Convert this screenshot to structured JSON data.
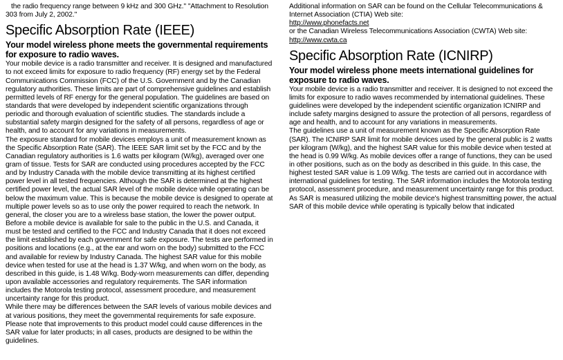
{
  "frag1": "the radio frequency range between 9 kHz and 300 GHz.\" \"Attachment to Resolution 303 from July 2, 2002.\"",
  "h1a": "Specific Absorption Rate (IEEE)",
  "h2a": "Your model wireless phone meets the governmental requirements for exposure to radio waves.",
  "p1": "Your mobile device is a radio transmitter and receiver. It is designed and manufactured to not exceed limits for exposure to radio frequency (RF) energy set by the Federal Communications Commission (FCC) of the U.S. Government and by the Canadian regulatory authorities. These limits are part of comprehensive guidelines and establish permitted levels of RF energy for the general population. The guidelines are based on standards that were developed by independent scientific organizations through periodic and thorough evaluation of scientific studies. The standards include a substantial safety margin designed for the safety of all persons, regardless of age or health, and to account for any variations in measurements.",
  "p2": "The exposure standard for mobile devices employs a unit of measurement known as the Specific Absorption Rate (SAR). The IEEE SAR limit set by the FCC and by the Canadian regulatory authorities is 1.6 watts per kilogram (W/kg), averaged over one gram of tissue. Tests for SAR are conducted using procedures accepted by the FCC and by Industry Canada with the mobile device transmitting at its highest certified power level in all tested frequencies. Although the SAR is determined at the highest certified power level, the actual SAR level of the mobile device while operating can be below the maximum value. This is because the mobile device is designed to operate at multiple power levels so as to use only the power required to reach the network. In general, the closer you are to a wireless base station, the lower the power output.",
  "p3": "Before a mobile device is available for sale to the public in the U.S. and Canada, it must be tested and certified to the FCC and Industry Canada that it does not exceed the limit established by each government for safe exposure. The tests are performed in positions and locations (e.g., at the ear and worn on the body) submitted to the FCC and available for review by Industry Canada. The highest SAR value for this mobile device when tested for use at the head is 1.37 W/kg, and when worn on the body, as described in this guide, is 1.48 W/kg. Body-worn measurements can differ, depending upon available accessories and regulatory requirements. The SAR information includes the Motorola testing protocol, assessment procedure, and measurement uncertainty range for this product.",
  "p4": "While there may be differences between the SAR levels of various mobile devices and at various positions, they meet the governmental requirements for safe exposure. Please note that improvements to this product model could cause differences in the SAR value for later products; in all cases, products are designed to be within the guidelines.",
  "p5a": "Additional information on SAR can be found on the Cellular Telecommunications & Internet Association (CTIA) Web site:",
  "link1": "http://www.phonefacts.net",
  "p5b": "or the Canadian Wireless Telecommunications Association (CWTA) Web site:",
  "link2": "http://www.cwta.ca",
  "h1b": "Specific Absorption Rate (ICNIRP)",
  "h2b": "Your model wireless phone meets international guidelines for exposure to radio waves.",
  "p6": "Your mobile device is a radio transmitter and receiver. It is designed to not exceed the limits for exposure to radio waves recommended by international guidelines. These guidelines were developed by the independent scientific organization ICNIRP and include safety margins designed to assure the protection of all persons, regardless of age and health, and to account for any variations in measurements.",
  "p7": "The guidelines use a unit of measurement known as the Specific Absorption Rate (SAR). The ICNIRP SAR limit for mobile devices used by the general public is 2 watts per kilogram (W/kg), and the highest SAR value for this mobile device when tested at the head is 0.99 W/kg. As mobile devices offer a range of functions, they can be used in other positions, such as on the body as described in this guide. In this case, the highest tested SAR value is 1.09 W/kg. The tests are carried out in accordance with international guidelines for testing. The SAR information includes the Motorola testing protocol, assessment procedure, and measurement uncertainty range for this product.",
  "p8": "As SAR is measured utilizing the mobile device's highest transmitting power, the actual SAR of this mobile device while operating is typically below that indicated"
}
